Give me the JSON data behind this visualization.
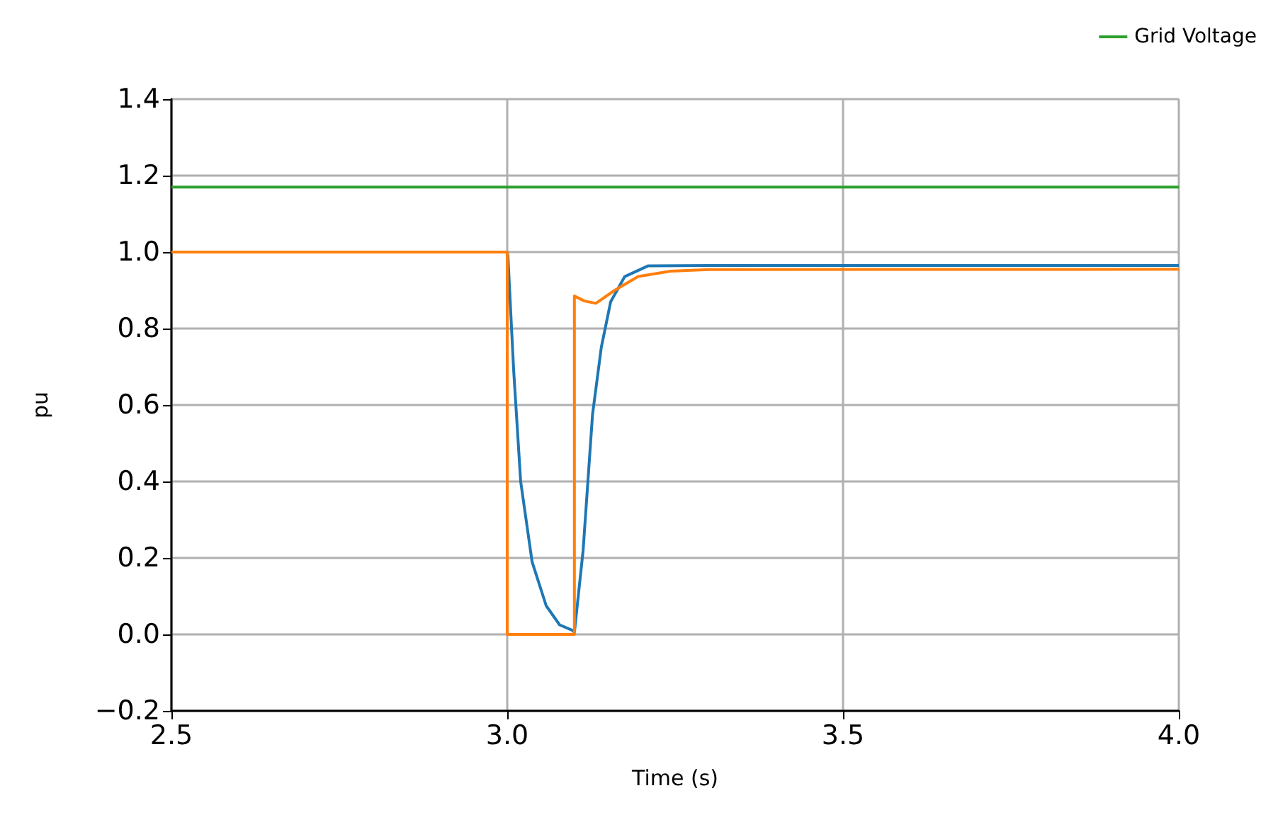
{
  "chart_data": {
    "type": "line",
    "xlabel": "Time (s)",
    "ylabel": "pu",
    "xlim": [
      2.5,
      4.0
    ],
    "xticks": [
      2.5,
      {
        "value": 3,
        "label": "3.0"
      },
      3.5,
      {
        "value": 4,
        "label": "4.0"
      }
    ],
    "ylim": [
      -0.2,
      1.4
    ],
    "yticks": [
      {
        "value": -0.2,
        "label": "−0.2"
      },
      {
        "value": 0,
        "label": "0.0"
      },
      0.2,
      0.4,
      0.6,
      0.8,
      {
        "value": 1,
        "label": "1.0"
      },
      1.2,
      1.4
    ],
    "grid": true,
    "legend": "top right",
    "marker": "none",
    "line_style": "solid",
    "series": [
      {
        "color": "#1f77b4",
        "x": [
          2.5,
          3.0,
          3.001,
          3.0096,
          3.02,
          3.037,
          3.058,
          3.078,
          3.098,
          3.1,
          3.113,
          3.127,
          3.14,
          3.154,
          3.175,
          3.21,
          3.3,
          4.0
        ],
        "values": [
          1.0,
          1.0,
          0.99,
          0.69,
          0.4,
          0.19,
          0.075,
          0.025,
          0.01,
          0.005,
          0.22,
          0.575,
          0.75,
          0.87,
          0.936,
          0.964,
          0.965,
          0.965
        ]
      },
      {
        "color": "#ff7f0e",
        "x": [
          2.5,
          3.0,
          3.0,
          3.1,
          3.1,
          3.115,
          3.132,
          3.16,
          3.195,
          3.243,
          3.3,
          4.0
        ],
        "values": [
          1.0,
          1.0,
          0.0,
          0.0,
          0.885,
          0.872,
          0.866,
          0.9,
          0.936,
          0.95,
          0.954,
          0.955
        ]
      },
      {
        "name": "Grid Voltage",
        "color": "#2ca02c",
        "x": [
          2.5,
          4.0
        ],
        "values": [
          1.17,
          1.17
        ]
      }
    ]
  }
}
